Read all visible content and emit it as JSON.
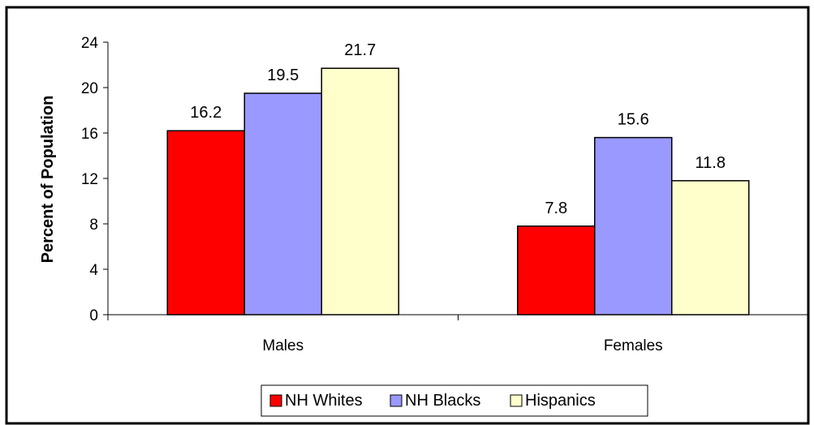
{
  "chart_data": {
    "type": "bar",
    "categories": [
      "Males",
      "Females"
    ],
    "series": [
      {
        "name": "NH Whites",
        "values": [
          16.2,
          7.8
        ],
        "color": "#ff0000"
      },
      {
        "name": "NH Blacks",
        "values": [
          19.5,
          15.6
        ],
        "color": "#9999ff"
      },
      {
        "name": "Hispanics",
        "values": [
          21.7,
          11.8
        ],
        "color": "#ffffcc"
      }
    ],
    "data_labels": [
      [
        "16.2",
        "7.8"
      ],
      [
        "19.5",
        "15.6"
      ],
      [
        "21.7",
        "11.8"
      ]
    ],
    "title": "",
    "xlabel": "",
    "ylabel": "Percent of Population",
    "ylim": [
      0,
      24
    ],
    "yticks": [
      0,
      4,
      8,
      12,
      16,
      20,
      24
    ],
    "grid": false,
    "legend_position": "bottom"
  }
}
